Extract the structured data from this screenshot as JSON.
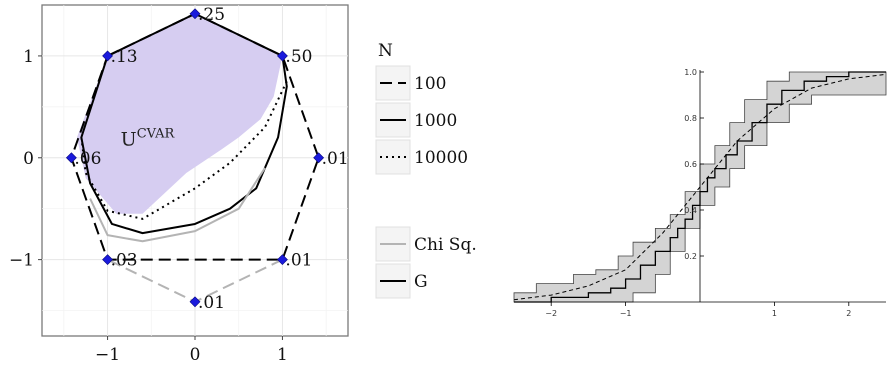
{
  "chart_data": [
    {
      "type": "line",
      "title": "",
      "xlabel": "",
      "ylabel": "",
      "xlim": [
        -1.75,
        1.75
      ],
      "ylim": [
        -1.75,
        1.5
      ],
      "x_ticks": [
        "−1",
        "0",
        "1"
      ],
      "y_ticks": [
        "1",
        "0",
        "−1"
      ],
      "x_tick_values": [
        -1,
        0,
        1
      ],
      "y_tick_values": [
        1,
        0,
        -1
      ],
      "grid": true,
      "shaded_region": {
        "label": "U",
        "label_superscript": "CVAR",
        "color": "#d6cdf1",
        "points": [
          [
            0,
            1.42
          ],
          [
            1,
            1.0
          ],
          [
            0.9,
            0.6
          ],
          [
            0.75,
            0.38
          ],
          [
            0.5,
            0.2
          ],
          [
            0.3,
            0.08
          ],
          [
            -0.1,
            -0.15
          ],
          [
            -0.6,
            -0.55
          ],
          [
            -0.9,
            -0.55
          ],
          [
            -1.25,
            -0.2
          ],
          [
            -1.35,
            0.2
          ],
          [
            -1.0,
            1.0
          ]
        ]
      },
      "vertices": [
        {
          "label": ".25",
          "x": 0,
          "y": 1.414
        },
        {
          "label": ".50",
          "x": 1,
          "y": 1
        },
        {
          "label": ".01",
          "x": 1.414,
          "y": 0
        },
        {
          "label": ".01",
          "x": 1,
          "y": -1
        },
        {
          "label": ".01",
          "x": 0,
          "y": -1.414
        },
        {
          "label": ".03",
          "x": -1,
          "y": -1
        },
        {
          "label": ".06",
          "x": -1.414,
          "y": 0
        },
        {
          "label": ".13",
          "x": -1,
          "y": 1
        }
      ],
      "marker_color": "#1a1adc",
      "legend_n": {
        "title": "N",
        "items": [
          {
            "label": "100",
            "style": "dashed"
          },
          {
            "label": "1000",
            "style": "solid"
          },
          {
            "label": "10000",
            "style": "dotted"
          }
        ]
      },
      "legend_stat": {
        "items": [
          {
            "label": "Chi Sq.",
            "color": "#b4b4b4"
          },
          {
            "label": "G",
            "color": "#000000"
          }
        ]
      },
      "series": [
        {
          "stat": "G",
          "n": "100",
          "points": [
            [
              -1,
              1
            ],
            [
              0,
              1.414
            ],
            [
              1,
              1
            ],
            [
              1.414,
              0
            ],
            [
              1,
              -1
            ],
            [
              -1,
              -1
            ],
            [
              -1.414,
              0
            ],
            [
              -1,
              1
            ]
          ]
        },
        {
          "stat": "Chi Sq.",
          "n": "100",
          "points": [
            [
              1,
              -1
            ],
            [
              0,
              -1.414
            ],
            [
              -1,
              -1
            ]
          ]
        },
        {
          "stat": "G",
          "n": "1000",
          "points": [
            [
              -1,
              1
            ],
            [
              0,
              1.414
            ],
            [
              1,
              1
            ],
            [
              1.05,
              0.7
            ],
            [
              0.95,
              0.2
            ],
            [
              0.7,
              -0.3
            ],
            [
              0.4,
              -0.5
            ],
            [
              0,
              -0.65
            ],
            [
              -0.6,
              -0.74
            ],
            [
              -0.95,
              -0.65
            ],
            [
              -1.2,
              -0.25
            ],
            [
              -1.3,
              0.2
            ],
            [
              -1,
              1
            ]
          ]
        },
        {
          "stat": "Chi Sq.",
          "n": "1000",
          "points": [
            [
              0.8,
              -0.1
            ],
            [
              0.5,
              -0.5
            ],
            [
              0,
              -0.72
            ],
            [
              -0.6,
              -0.82
            ],
            [
              -1.0,
              -0.76
            ],
            [
              -1.2,
              -0.4
            ]
          ]
        },
        {
          "stat": "G",
          "n": "10000",
          "points": [
            [
              1.05,
              0.75
            ],
            [
              0.8,
              0.3
            ],
            [
              0.4,
              -0.05
            ],
            [
              0,
              -0.3
            ],
            [
              -0.6,
              -0.6
            ],
            [
              -1.0,
              -0.52
            ],
            [
              -1.25,
              -0.15
            ],
            [
              -1.3,
              0.2
            ]
          ]
        }
      ]
    },
    {
      "type": "area",
      "title": "",
      "xlabel": "",
      "ylabel": "",
      "xlim": [
        -2.5,
        2.5
      ],
      "ylim": [
        0,
        1.0
      ],
      "x_ticks": [
        "−2",
        "−1",
        "1",
        "2"
      ],
      "x_tick_values": [
        -2,
        -1,
        1,
        2
      ],
      "y_ticks": [
        "0.2",
        "0.4",
        "0.6",
        "0.8",
        "1.0"
      ],
      "y_tick_values": [
        0.2,
        0.4,
        0.6,
        0.8,
        1.0
      ],
      "grid": false,
      "band": {
        "color": "#d4d4d4",
        "x": [
          -2.5,
          -2.2,
          -1.7,
          -1.4,
          -1.1,
          -0.9,
          -0.6,
          -0.4,
          -0.2,
          0.0,
          0.2,
          0.4,
          0.6,
          0.9,
          1.2,
          1.5,
          2.0,
          2.5
        ],
        "upper": [
          0.04,
          0.08,
          0.12,
          0.14,
          0.2,
          0.26,
          0.32,
          0.38,
          0.48,
          0.6,
          0.68,
          0.78,
          0.88,
          0.96,
          1.0,
          1.0,
          1.0,
          1.0
        ],
        "lower": [
          0,
          0,
          0,
          0,
          0,
          0.04,
          0.12,
          0.22,
          0.32,
          0.42,
          0.5,
          0.58,
          0.68,
          0.78,
          0.86,
          0.9,
          0.9,
          0.9
        ]
      },
      "series": [
        {
          "style": "step",
          "x": [
            -2.5,
            -2.0,
            -1.5,
            -1.2,
            -1.0,
            -0.8,
            -0.6,
            -0.4,
            -0.3,
            -0.2,
            -0.1,
            0.0,
            0.1,
            0.2,
            0.35,
            0.5,
            0.7,
            0.9,
            1.1,
            1.4,
            1.7,
            2.0,
            2.5
          ],
          "y": [
            0,
            0.02,
            0.04,
            0.06,
            0.1,
            0.16,
            0.22,
            0.28,
            0.32,
            0.36,
            0.42,
            0.48,
            0.54,
            0.58,
            0.64,
            0.7,
            0.78,
            0.86,
            0.92,
            0.96,
            0.98,
            1.0,
            1.0
          ]
        },
        {
          "style": "dashed",
          "x": [
            -2.5,
            -2.0,
            -1.5,
            -1.0,
            -0.5,
            0.0,
            0.5,
            1.0,
            1.5,
            2.0,
            2.5
          ],
          "y": [
            0.01,
            0.03,
            0.07,
            0.14,
            0.3,
            0.5,
            0.7,
            0.84,
            0.93,
            0.97,
            0.99
          ]
        }
      ]
    }
  ]
}
